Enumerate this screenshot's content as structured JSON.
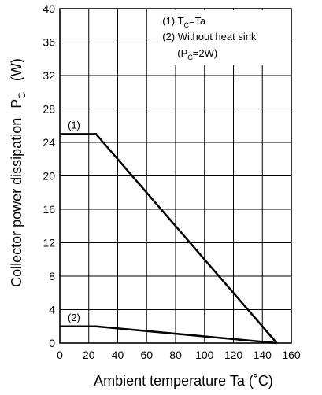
{
  "chart_data": {
    "type": "line",
    "xlabel": "Ambient temperature   Ta   (˚C)",
    "ylabel_main": "Collector power dissipation",
    "ylabel_symbol": "P",
    "ylabel_symbol_sub": "C",
    "ylabel_unit": "(W)",
    "xlim": [
      0,
      160
    ],
    "ylim": [
      0,
      40
    ],
    "x_ticks": [
      0,
      20,
      40,
      60,
      80,
      100,
      120,
      140,
      160
    ],
    "y_ticks": [
      0,
      4,
      8,
      12,
      16,
      20,
      24,
      28,
      32,
      36,
      40
    ],
    "grid": true,
    "legend_position": "top-right",
    "legend": {
      "line1_prefix": "(1) T",
      "line1_sub": "C",
      "line1_suffix": "=Ta",
      "line2": "(2) Without heat sink",
      "line3_prefix": "(P",
      "line3_sub": "C",
      "line3_suffix": "=2W)"
    },
    "series": [
      {
        "label": "(1)",
        "x": [
          0,
          25,
          150
        ],
        "y": [
          25,
          25,
          0
        ]
      },
      {
        "label": "(2)",
        "x": [
          0,
          25,
          150
        ],
        "y": [
          2,
          2,
          0
        ]
      }
    ]
  }
}
